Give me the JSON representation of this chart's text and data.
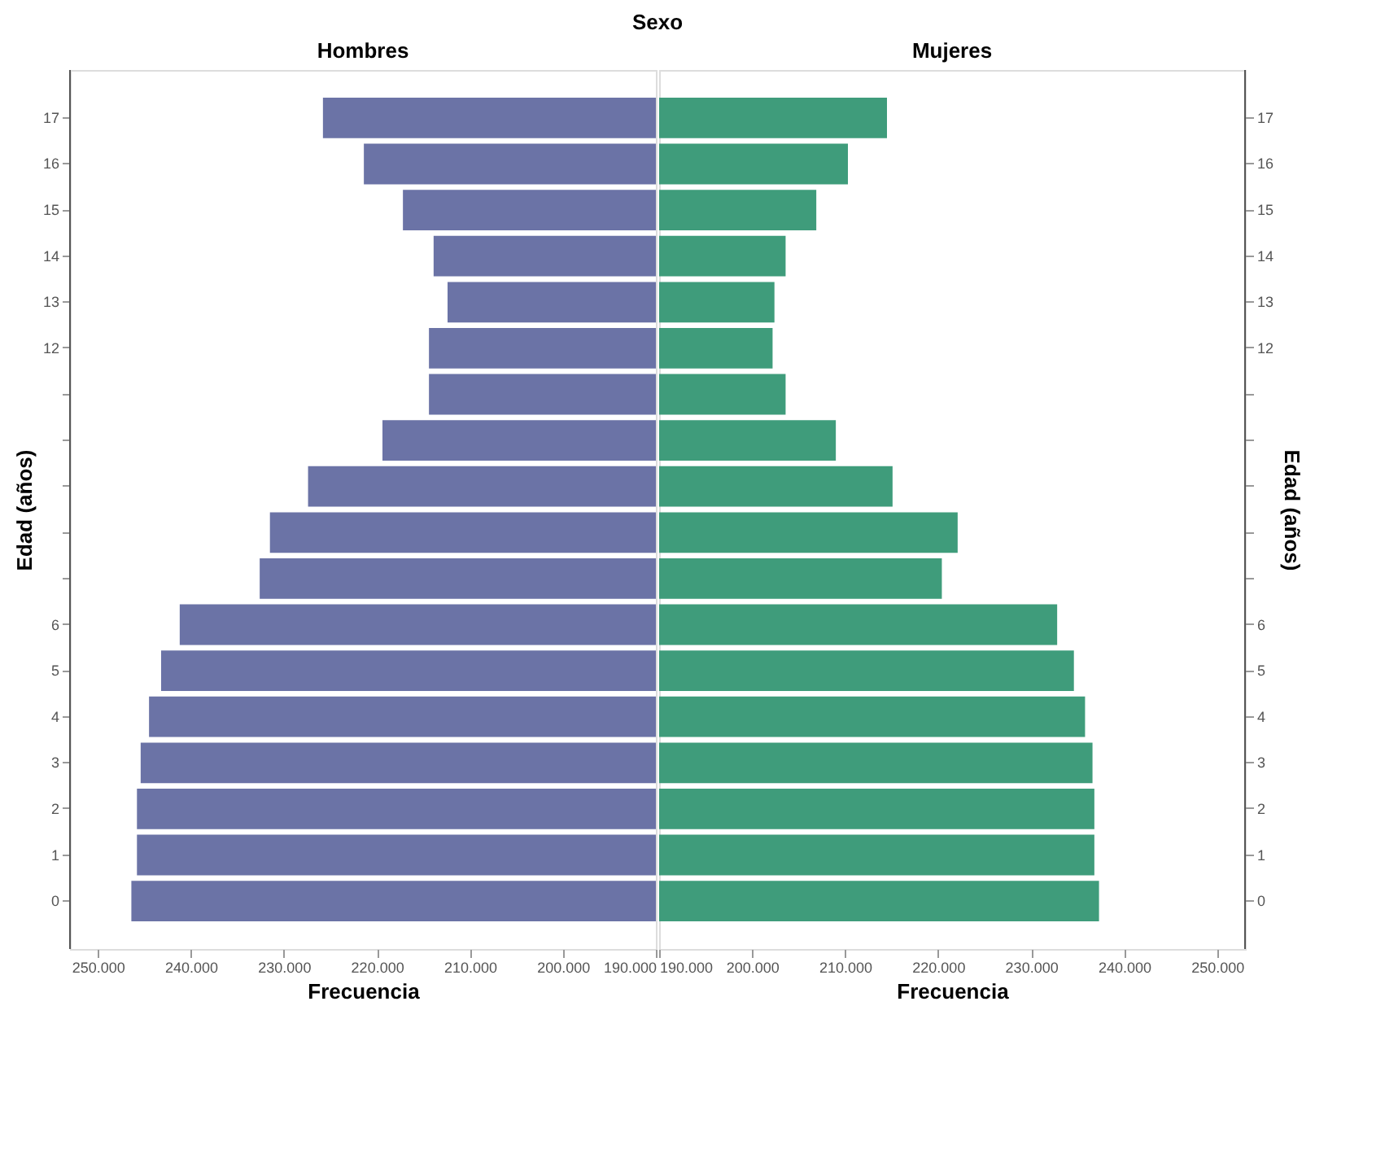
{
  "chart_data": [
    {
      "type": "bar",
      "orientation": "horizontal",
      "title": "Hombres",
      "annotations": [
        "Sexo"
      ],
      "xlabel": "Frecuencia",
      "ylabel": "Edad (años)",
      "color": "#6b73a6",
      "categories": [
        "17",
        "16",
        "15",
        "14",
        "13",
        "12",
        null,
        null,
        null,
        null,
        null,
        "6",
        "5",
        "4",
        "3",
        "2",
        "1",
        "0"
      ],
      "values": [
        225800,
        221400,
        217200,
        213900,
        212400,
        214400,
        214400,
        219400,
        227400,
        231500,
        232600,
        241200,
        243200,
        244500,
        245400,
        245800,
        245800,
        246400
      ],
      "xlim": [
        253000,
        190000
      ],
      "xticks": [
        {
          "value": 190000,
          "label": "190.000"
        },
        {
          "value": 200000,
          "label": "200.000"
        },
        {
          "value": 210000,
          "label": "210.000"
        },
        {
          "value": 220000,
          "label": "220.000"
        },
        {
          "value": 230000,
          "label": "230.000"
        },
        {
          "value": 240000,
          "label": "240.000"
        },
        {
          "value": 250000,
          "label": "250.000"
        }
      ],
      "grid": false
    },
    {
      "type": "bar",
      "orientation": "horizontal",
      "title": "Mujeres",
      "xlabel": "Frecuencia",
      "ylabel": "Edad (años)",
      "color": "#3f9c7b",
      "categories": [
        "17",
        "16",
        "15",
        "14",
        "13",
        "12",
        null,
        null,
        null,
        null,
        null,
        "6",
        "5",
        "4",
        "3",
        "2",
        "1",
        "0"
      ],
      "values": [
        214500,
        210300,
        206900,
        203600,
        202400,
        202200,
        203600,
        209000,
        215100,
        222100,
        220400,
        232800,
        234600,
        235800,
        236600,
        236800,
        236800,
        237300
      ],
      "xlim": [
        190000,
        253000
      ],
      "xticks": [
        {
          "value": 190000,
          "label": "190.000"
        },
        {
          "value": 200000,
          "label": "200.000"
        },
        {
          "value": 210000,
          "label": "210.000"
        },
        {
          "value": 220000,
          "label": "220.000"
        },
        {
          "value": 230000,
          "label": "230.000"
        },
        {
          "value": 240000,
          "label": "240.000"
        },
        {
          "value": 250000,
          "label": "250.000"
        }
      ],
      "grid": false
    }
  ]
}
